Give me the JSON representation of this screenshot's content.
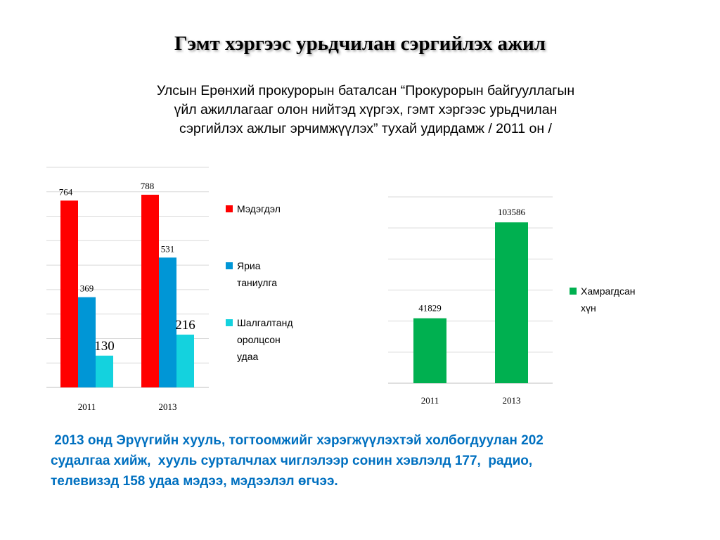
{
  "title": "Гэмт хэргээс урьдчилан сэргийлэх ажил",
  "subtitle_lines": [
    "Улсын Ерөнхий прокурорын баталсан “Прокурорын байгууллагын",
    "үйл ажиллагааг олон нийтэд хүргэх, гэмт хэргээс урьдчилан",
    "сэргийлэх ажлыг эрчимжүүлэх” тухай удирдамж / 2011 он /"
  ],
  "footer_lines": [
    " 2013 онд Эрүүгийн хууль, тогтоомжийг хэрэгжүүлэхтэй холбогдуулан 202",
    "судалгаа хийж,  хууль сурталчлах чиглэлээр сонин хэвлэлд 177,  радио,",
    "телевизэд 158 удаа мэдээ, мэдээлэл өгчээ."
  ],
  "chart_data": [
    {
      "type": "bar",
      "categories": [
        "2011",
        "2013"
      ],
      "series": [
        {
          "name": "Мэдэгдэл",
          "values": [
            764,
            788
          ],
          "color": "#ff0000"
        },
        {
          "name": "Яриа таниулга",
          "values": [
            369,
            531
          ],
          "color": "#0096d6"
        },
        {
          "name": "Шалгалтанд оролцсон удаа",
          "values": [
            130,
            216
          ],
          "color": "#14d2de"
        }
      ],
      "ylim": [
        0,
        900
      ],
      "grid": true,
      "legend": "right"
    },
    {
      "type": "bar",
      "categories": [
        "2011",
        "2013"
      ],
      "series": [
        {
          "name": "Хамрагдсан хүн",
          "values": [
            41829,
            103586
          ],
          "color": "#00b050"
        }
      ],
      "ylim": [
        0,
        120000
      ],
      "grid": true,
      "legend": "right"
    }
  ]
}
